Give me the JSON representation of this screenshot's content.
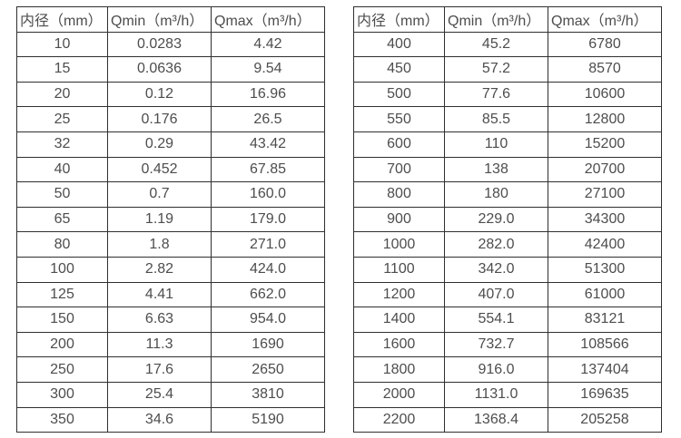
{
  "colors": {
    "text": "#4d4d4d",
    "border": "#2f2f2f",
    "background": "#ffffff"
  },
  "tables": [
    {
      "name": "flow-table-left",
      "headers": [
        "内径（mm）",
        "Qmin（m³/h）",
        "Qmax（m³/h）"
      ],
      "rows": [
        [
          "10",
          "0.0283",
          "4.42"
        ],
        [
          "15",
          "0.0636",
          "9.54"
        ],
        [
          "20",
          "0.12",
          "16.96"
        ],
        [
          "25",
          "0.176",
          "26.5"
        ],
        [
          "32",
          "0.29",
          "43.42"
        ],
        [
          "40",
          "0.452",
          "67.85"
        ],
        [
          "50",
          "0.7",
          "160.0"
        ],
        [
          "65",
          "1.19",
          "179.0"
        ],
        [
          "80",
          "1.8",
          "271.0"
        ],
        [
          "100",
          "2.82",
          "424.0"
        ],
        [
          "125",
          "4.41",
          "662.0"
        ],
        [
          "150",
          "6.63",
          "954.0"
        ],
        [
          "200",
          "11.3",
          "1690"
        ],
        [
          "250",
          "17.6",
          "2650"
        ],
        [
          "300",
          "25.4",
          "3810"
        ],
        [
          "350",
          "34.6",
          "5190"
        ]
      ]
    },
    {
      "name": "flow-table-right",
      "headers": [
        "内径（mm）",
        "Qmin（m³/h）",
        "Qmax（m³/h）"
      ],
      "rows": [
        [
          "400",
          "45.2",
          "6780"
        ],
        [
          "450",
          "57.2",
          "8570"
        ],
        [
          "500",
          "77.6",
          "10600"
        ],
        [
          "550",
          "85.5",
          "12800"
        ],
        [
          "600",
          "110",
          "15200"
        ],
        [
          "700",
          "138",
          "20700"
        ],
        [
          "800",
          "180",
          "27100"
        ],
        [
          "900",
          "229.0",
          "34300"
        ],
        [
          "1000",
          "282.0",
          "42400"
        ],
        [
          "1100",
          "342.0",
          "51300"
        ],
        [
          "1200",
          "407.0",
          "61000"
        ],
        [
          "1400",
          "554.1",
          "83121"
        ],
        [
          "1600",
          "732.7",
          "108566"
        ],
        [
          "1800",
          "916.0",
          "137404"
        ],
        [
          "2000",
          "1131.0",
          "169635"
        ],
        [
          "2200",
          "1368.4",
          "205258"
        ]
      ]
    }
  ]
}
